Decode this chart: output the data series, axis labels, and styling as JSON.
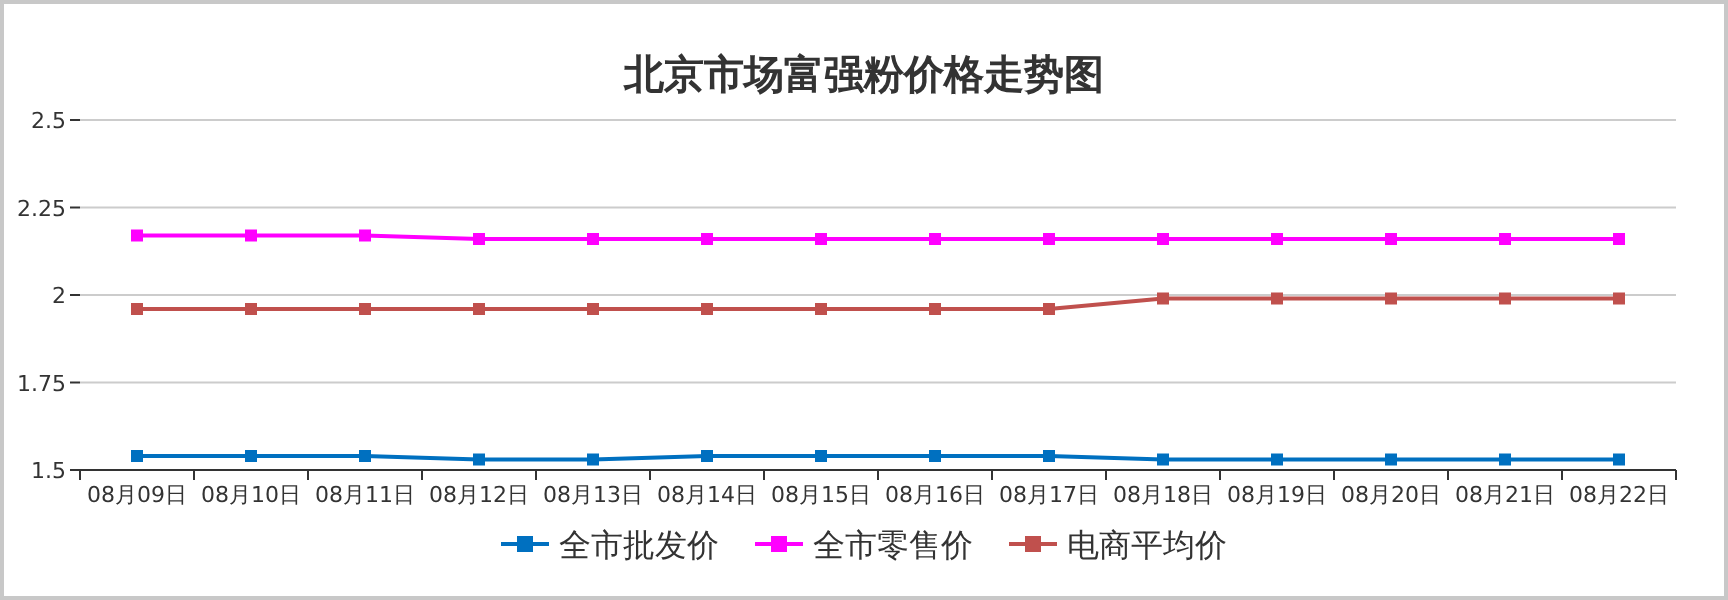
{
  "chart_data": {
    "type": "line",
    "title": "北京市场富强粉价格走势图",
    "categories": [
      "08月09日",
      "08月10日",
      "08月11日",
      "08月12日",
      "08月13日",
      "08月14日",
      "08月15日",
      "08月16日",
      "08月17日",
      "08月18日",
      "08月19日",
      "08月20日",
      "08月21日",
      "08月22日"
    ],
    "series": [
      {
        "name": "全市批发价",
        "color": "#0070c0",
        "values": [
          1.54,
          1.54,
          1.54,
          1.53,
          1.53,
          1.54,
          1.54,
          1.54,
          1.54,
          1.53,
          1.53,
          1.53,
          1.53,
          1.53
        ]
      },
      {
        "name": "全市零售价",
        "color": "#ff00ff",
        "values": [
          2.17,
          2.17,
          2.17,
          2.16,
          2.16,
          2.16,
          2.16,
          2.16,
          2.16,
          2.16,
          2.16,
          2.16,
          2.16,
          2.16
        ]
      },
      {
        "name": "电商平均价",
        "color": "#c0504d",
        "values": [
          1.96,
          1.96,
          1.96,
          1.96,
          1.96,
          1.96,
          1.96,
          1.96,
          1.96,
          1.99,
          1.99,
          1.99,
          1.99,
          1.99
        ]
      }
    ],
    "ylim": [
      1.5,
      2.5
    ],
    "yticks": [
      1.5,
      1.75,
      2,
      2.25,
      2.5
    ],
    "grid": "y",
    "legend": "bottom",
    "marker": "square",
    "line_style": "solid"
  }
}
